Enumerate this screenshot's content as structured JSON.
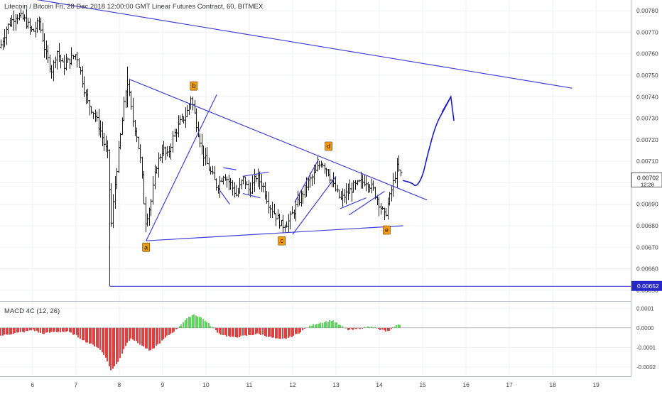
{
  "chart_data": [
    {
      "type": "ohlc",
      "title": "Litecoin / Bitcoin Fri, 28 Dec 2018 12:00:00 GMT Linear Futures Contract, 60, BITMEX",
      "ylim": [
        0.00645,
        0.00785
      ],
      "xlim": [
        5.25,
        19.8
      ],
      "x_ticks": [
        6,
        7,
        8,
        9,
        10,
        11,
        12,
        13,
        14,
        15,
        16,
        17,
        18,
        19
      ],
      "x_tick_labels": [
        "6",
        "7",
        "8",
        "9",
        "10",
        "11",
        "12",
        "13",
        "14",
        "15",
        "16",
        "17",
        "18",
        "19"
      ],
      "y_ticks": [
        0.0065,
        0.0066,
        0.0067,
        0.0068,
        0.0069,
        0.007,
        0.0071,
        0.0072,
        0.0073,
        0.0074,
        0.0075,
        0.0076,
        0.0077,
        0.0078
      ],
      "y_tick_labels": [
        "0.00650",
        "0.00660",
        "0.00670",
        "0.00680",
        "0.00690",
        "0.00700",
        "0.00710",
        "0.00720",
        "0.00730",
        "0.00740",
        "0.00750",
        "0.00760",
        "0.00770",
        "0.00780"
      ],
      "last_price": {
        "label": "0.00702",
        "value": 0.00702,
        "countdown": "12:28"
      },
      "level_line": {
        "label": "0.00652",
        "value": 0.00652,
        "x_start": 7.78
      },
      "price_path": [
        [
          5.25,
          0.00763
        ],
        [
          5.4,
          0.00772
        ],
        [
          5.6,
          0.00778
        ],
        [
          5.8,
          0.00776
        ],
        [
          6.0,
          0.0077
        ],
        [
          6.15,
          0.00775
        ],
        [
          6.3,
          0.0076
        ],
        [
          6.45,
          0.00752
        ],
        [
          6.55,
          0.00762
        ],
        [
          6.7,
          0.00754
        ],
        [
          6.85,
          0.00757
        ],
        [
          7.0,
          0.0076
        ],
        [
          7.1,
          0.00752
        ],
        [
          7.25,
          0.00738
        ],
        [
          7.4,
          0.00733
        ],
        [
          7.55,
          0.00725
        ],
        [
          7.65,
          0.00718
        ],
        [
          7.75,
          0.00712
        ],
        [
          7.8,
          0.00678
        ],
        [
          7.9,
          0.007
        ],
        [
          8.0,
          0.00718
        ],
        [
          8.1,
          0.00735
        ],
        [
          8.18,
          0.00748
        ],
        [
          8.3,
          0.0073
        ],
        [
          8.4,
          0.00722
        ],
        [
          8.5,
          0.00708
        ],
        [
          8.6,
          0.00682
        ],
        [
          8.72,
          0.0069
        ],
        [
          8.85,
          0.00708
        ],
        [
          9.0,
          0.00716
        ],
        [
          9.1,
          0.00712
        ],
        [
          9.25,
          0.00722
        ],
        [
          9.4,
          0.00728
        ],
        [
          9.55,
          0.00732
        ],
        [
          9.65,
          0.0074
        ],
        [
          9.8,
          0.00725
        ],
        [
          9.95,
          0.00712
        ],
        [
          10.1,
          0.00705
        ],
        [
          10.25,
          0.00698
        ],
        [
          10.4,
          0.00704
        ],
        [
          10.55,
          0.007
        ],
        [
          10.7,
          0.00694
        ],
        [
          10.85,
          0.00702
        ],
        [
          11.0,
          0.00696
        ],
        [
          11.15,
          0.00703
        ],
        [
          11.3,
          0.00699
        ],
        [
          11.45,
          0.0069
        ],
        [
          11.6,
          0.00685
        ],
        [
          11.75,
          0.0068
        ],
        [
          11.9,
          0.00682
        ],
        [
          12.05,
          0.00688
        ],
        [
          12.2,
          0.00694
        ],
        [
          12.35,
          0.007
        ],
        [
          12.5,
          0.00704
        ],
        [
          12.65,
          0.0071
        ],
        [
          12.8,
          0.00706
        ],
        [
          12.95,
          0.00698
        ],
        [
          13.1,
          0.00692
        ],
        [
          13.25,
          0.00695
        ],
        [
          13.4,
          0.00698
        ],
        [
          13.55,
          0.007
        ],
        [
          13.7,
          0.00701
        ],
        [
          13.85,
          0.00697
        ],
        [
          14.0,
          0.0069
        ],
        [
          14.12,
          0.00684
        ],
        [
          14.22,
          0.00692
        ],
        [
          14.32,
          0.007
        ],
        [
          14.4,
          0.00707
        ],
        [
          14.5,
          0.00703
        ]
      ],
      "trendlines": [
        {
          "x1": 5.25,
          "y1": 0.00788,
          "x2": 18.45,
          "y2": 0.00744
        },
        {
          "x1": 8.25,
          "y1": 0.00748,
          "x2": 15.1,
          "y2": 0.00692
        },
        {
          "x1": 8.62,
          "y1": 0.00673,
          "x2": 14.55,
          "y2": 0.0068
        },
        {
          "x1": 8.62,
          "y1": 0.00673,
          "x2": 10.25,
          "y2": 0.00741
        },
        {
          "x1": 10.4,
          "y1": 0.00707,
          "x2": 10.7,
          "y2": 0.00706
        },
        {
          "x1": 10.3,
          "y1": 0.00697,
          "x2": 10.55,
          "y2": 0.0069
        },
        {
          "x1": 10.85,
          "y1": 0.00703,
          "x2": 11.45,
          "y2": 0.00705
        },
        {
          "x1": 10.85,
          "y1": 0.00695,
          "x2": 11.25,
          "y2": 0.00693
        },
        {
          "x1": 12.05,
          "y1": 0.00691,
          "x2": 12.6,
          "y2": 0.00711
        },
        {
          "x1": 12.0,
          "y1": 0.00676,
          "x2": 13.0,
          "y2": 0.00703
        },
        {
          "x1": 13.1,
          "y1": 0.00688,
          "x2": 13.7,
          "y2": 0.00693
        },
        {
          "x1": 13.3,
          "y1": 0.00685,
          "x2": 14.12,
          "y2": 0.00696
        }
      ],
      "wave_labels": [
        {
          "text": "b",
          "x": 9.72,
          "y": 0.00745
        },
        {
          "text": "d",
          "x": 12.83,
          "y": 0.00717
        },
        {
          "text": "a",
          "x": 8.62,
          "y": 0.0067
        },
        {
          "text": "c",
          "x": 11.75,
          "y": 0.00673
        },
        {
          "text": "e",
          "x": 14.17,
          "y": 0.00678
        }
      ],
      "projection_path": [
        [
          14.55,
          0.00701
        ],
        [
          14.75,
          0.007
        ],
        [
          14.85,
          0.00698
        ],
        [
          15.0,
          0.00703
        ],
        [
          15.1,
          0.00712
        ],
        [
          15.3,
          0.00727
        ],
        [
          15.52,
          0.00735
        ],
        [
          15.65,
          0.0074
        ]
      ],
      "projection_arrowhead": [
        [
          15.45,
          0.00733
        ],
        [
          15.65,
          0.0074
        ],
        [
          15.72,
          0.00729
        ]
      ],
      "colors": {
        "candle": "#1a1a1a",
        "trendline": "#4040d8",
        "label_bg": "#f39c12",
        "projection": "#1e1ec0"
      }
    },
    {
      "type": "bar",
      "title": "MACD 4C (12, 26)",
      "ylim": [
        -0.00024,
        0.00013
      ],
      "y_ticks": [
        0.0001,
        0,
        -0.0001,
        -0.0002
      ],
      "y_tick_labels": [
        "0.0001",
        "0.0000",
        "-0.0001",
        "-0.0002"
      ],
      "histogram_path": [
        [
          5.25,
          -4e-05
        ],
        [
          5.5,
          -3e-05
        ],
        [
          5.8,
          -2e-05
        ],
        [
          6.0,
          -1e-05
        ],
        [
          6.2,
          -3e-05
        ],
        [
          6.5,
          -2e-05
        ],
        [
          6.8,
          -2e-05
        ],
        [
          7.0,
          -4e-05
        ],
        [
          7.2,
          -7e-05
        ],
        [
          7.5,
          -0.0001
        ],
        [
          7.7,
          -0.00016
        ],
        [
          7.78,
          -0.00022
        ],
        [
          7.95,
          -0.00018
        ],
        [
          8.1,
          -0.0001
        ],
        [
          8.25,
          -5e-05
        ],
        [
          8.5,
          -9e-05
        ],
        [
          8.7,
          -0.00012
        ],
        [
          8.9,
          -8e-05
        ],
        [
          9.1,
          -4e-05
        ],
        [
          9.3,
          -1e-05
        ],
        [
          9.5,
          4e-05
        ],
        [
          9.7,
          7e-05
        ],
        [
          9.9,
          5e-05
        ],
        [
          10.1,
          1e-05
        ],
        [
          10.3,
          -3e-05
        ],
        [
          10.6,
          -5e-05
        ],
        [
          10.9,
          -4e-05
        ],
        [
          11.2,
          -3e-05
        ],
        [
          11.5,
          -5e-05
        ],
        [
          11.7,
          -6e-05
        ],
        [
          11.9,
          -5e-05
        ],
        [
          12.1,
          -3e-05
        ],
        [
          12.3,
          0.0
        ],
        [
          12.5,
          2e-05
        ],
        [
          12.7,
          3e-05
        ],
        [
          12.9,
          4e-05
        ],
        [
          13.1,
          1e-05
        ],
        [
          13.25,
          -1e-05
        ],
        [
          13.4,
          -1e-05
        ],
        [
          13.6,
          0.0
        ],
        [
          13.8,
          1e-05
        ],
        [
          14.0,
          -1e-05
        ],
        [
          14.2,
          -2e-05
        ],
        [
          14.35,
          1e-05
        ],
        [
          14.5,
          2e-05
        ]
      ],
      "colors": {
        "positive": "#5cd65c",
        "negative": "#e04040"
      }
    }
  ],
  "ui": {
    "indicator_title": "MACD 4C (12, 26)"
  }
}
